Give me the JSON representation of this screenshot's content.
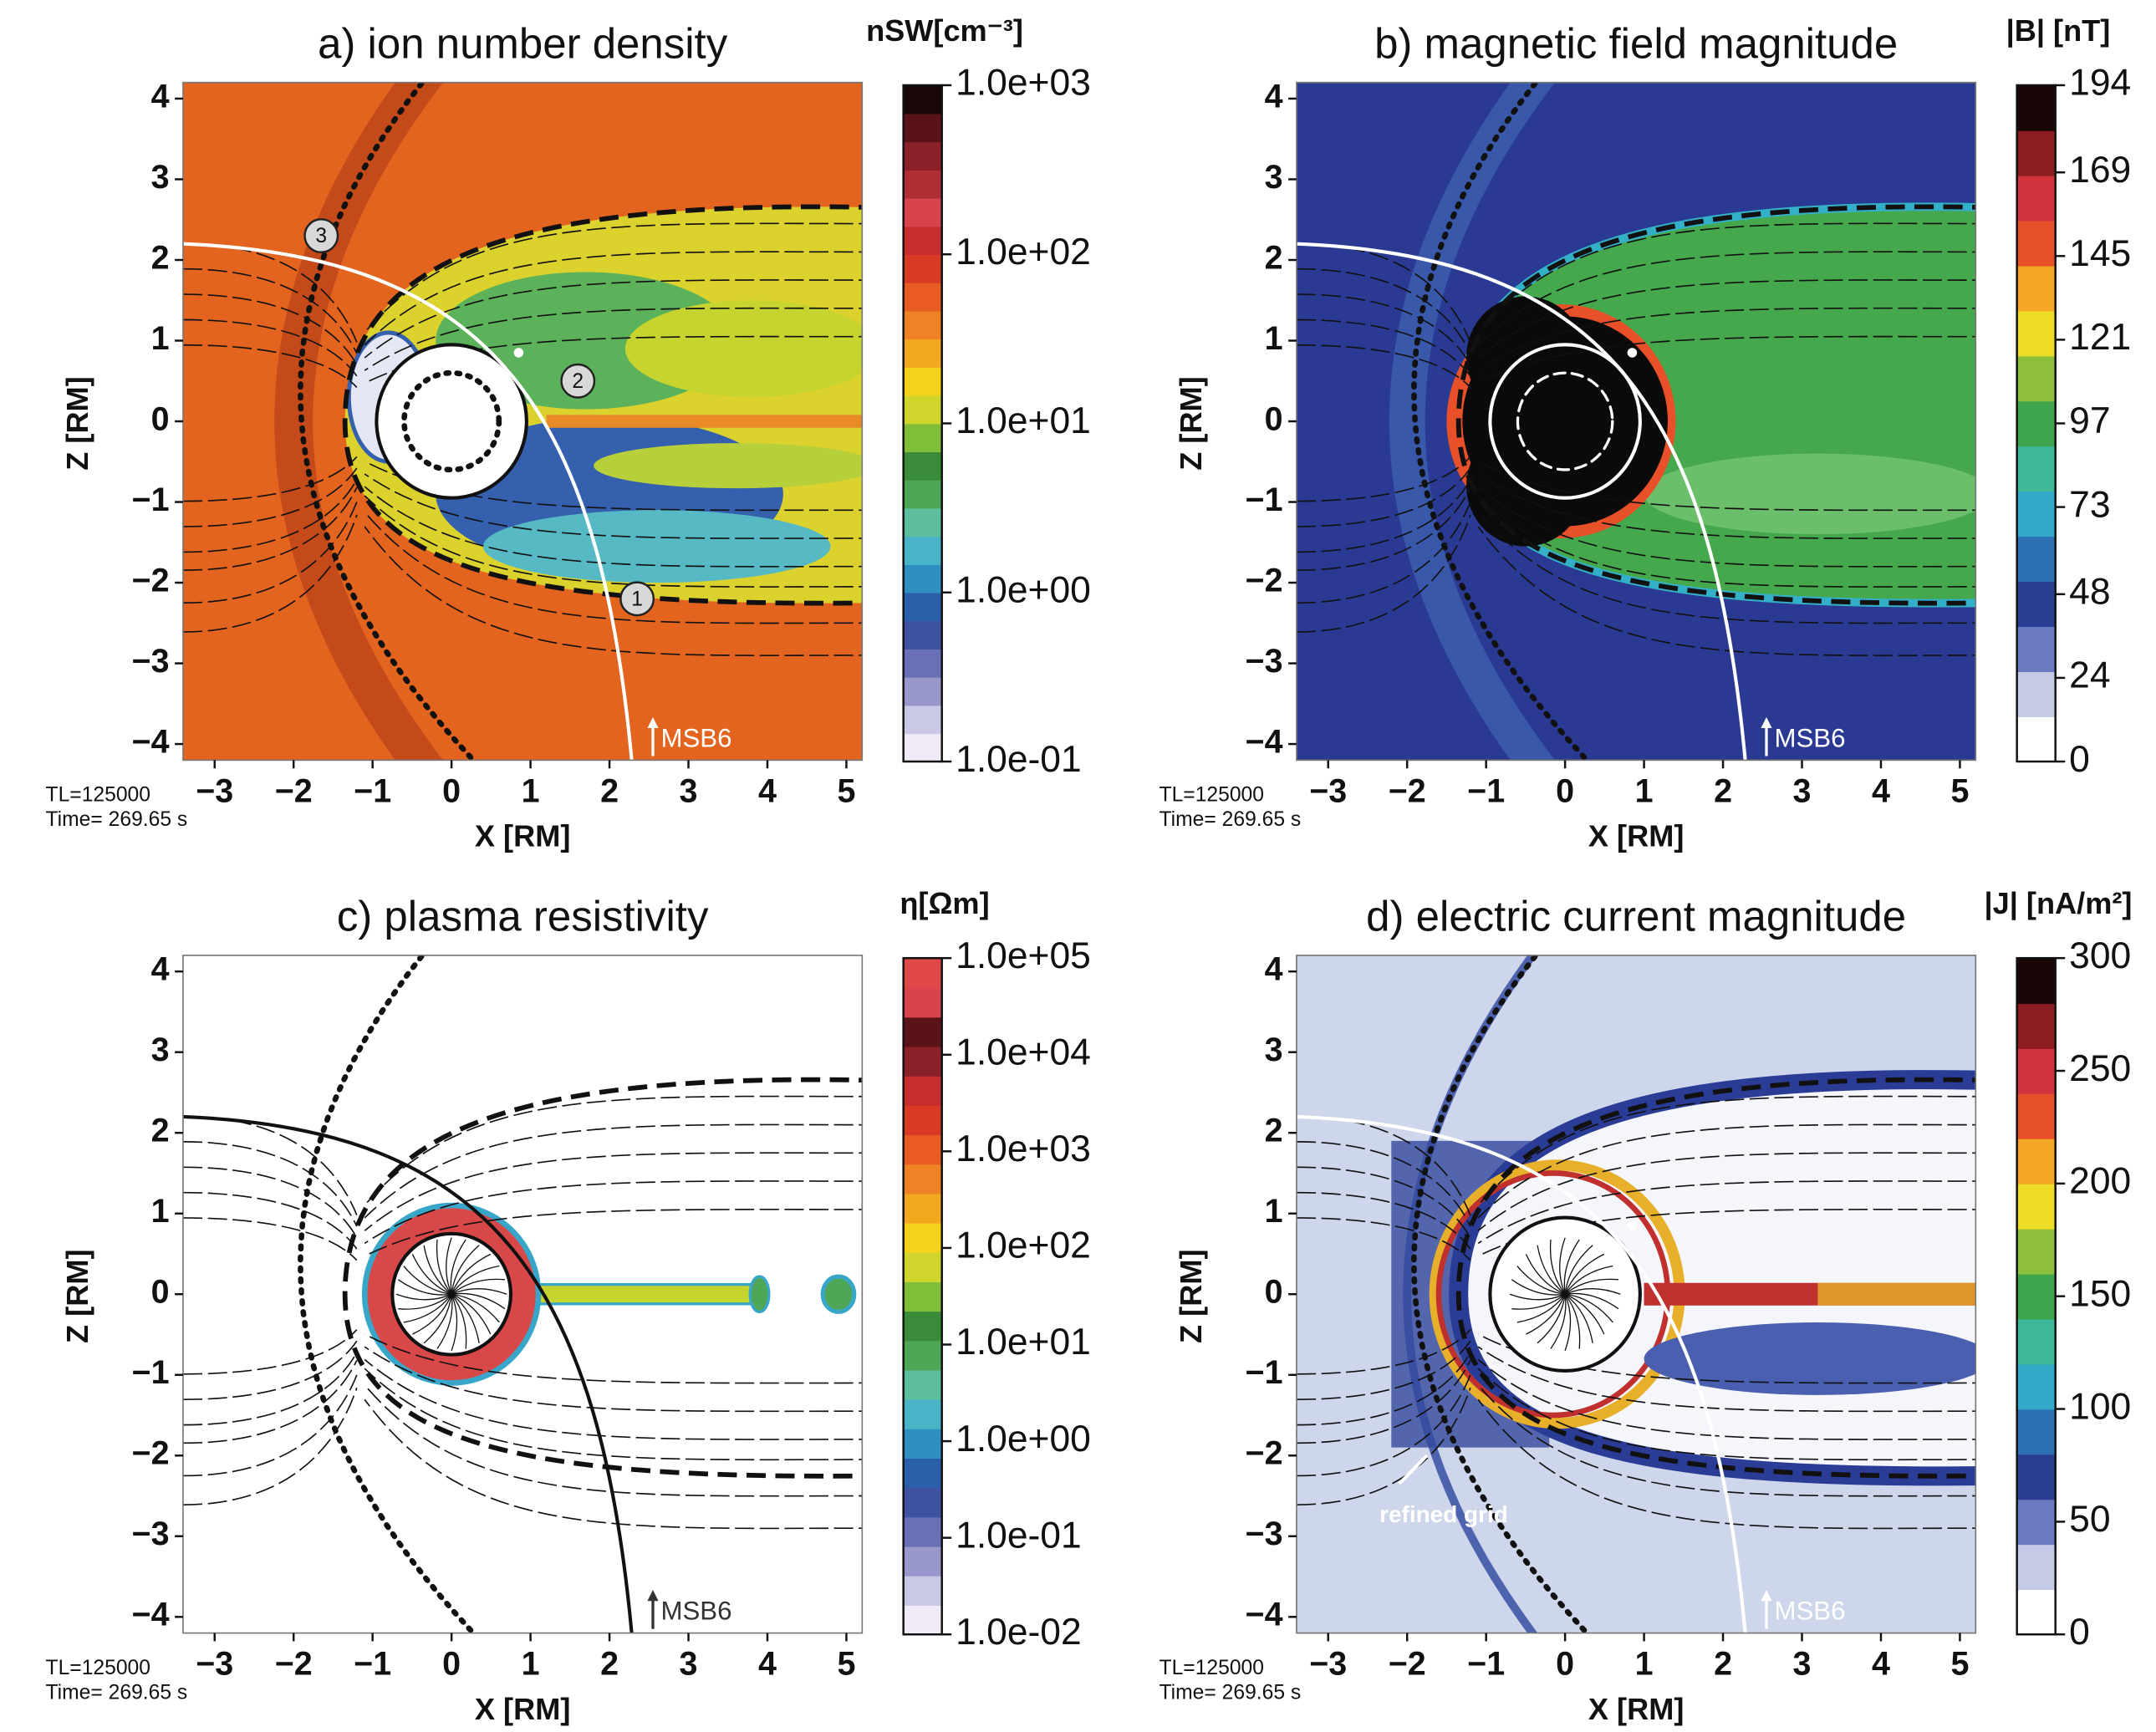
{
  "chart_data": [
    {
      "type": "heatmap",
      "title": "a) ion number density",
      "colorbar_label": "nSW[cm⁻³]",
      "xlabel": "X [RM]",
      "ylabel": "Z [RM]",
      "xlim": [
        -3.4,
        5.2
      ],
      "ylim": [
        -4.2,
        4.2
      ],
      "xticks": [
        {
          "value": -3,
          "label": "−3"
        },
        {
          "value": -2,
          "label": "−2"
        },
        {
          "value": -1,
          "label": "−1"
        },
        0,
        1,
        2,
        3,
        4,
        5
      ],
      "yticks": [
        {
          "value": -4,
          "label": "−4"
        },
        {
          "value": -3,
          "label": "−3"
        },
        {
          "value": -2,
          "label": "−2"
        },
        {
          "value": -1,
          "label": "−1"
        },
        0,
        1,
        2,
        3,
        4
      ],
      "clim": [
        0.1,
        1000
      ],
      "colorbar_log": true,
      "colorbar_ticks": [
        {
          "value": 1000,
          "label": "1.0e+03"
        },
        {
          "value": 100,
          "label": "1.0e+02"
        },
        {
          "value": 10,
          "label": "1.0e+01"
        },
        {
          "value": 1,
          "label": "1.0e+00"
        },
        {
          "value": 0.1,
          "label": "1.0e-01"
        }
      ],
      "colormap": [
        "#efeaf6",
        "#c9c8e6",
        "#9898cc",
        "#6a70b6",
        "#3f53a3",
        "#2c5fa9",
        "#2f8fc0",
        "#49b3c8",
        "#5ebf9e",
        "#4fa656",
        "#3a8c3a",
        "#7fbf3a",
        "#cfd52a",
        "#f3d21b",
        "#f2a91f",
        "#ee8224",
        "#e85c24",
        "#d83a26",
        "#c72d2e",
        "#d9434b",
        "#b02e36",
        "#8a2028",
        "#5a1417",
        "#1a0808"
      ],
      "run_label": "TL=125000",
      "time_label": "Time= 269.65 s",
      "trajectory_label": "MSB6",
      "markers": [
        "1",
        "2",
        "3"
      ]
    },
    {
      "type": "heatmap",
      "title": "b) magnetic field magnitude",
      "colorbar_label": "|B| [nT]",
      "xlabel": "X [RM]",
      "ylabel": "Z [RM]",
      "xlim": [
        -3.4,
        5.2
      ],
      "ylim": [
        -4.2,
        4.2
      ],
      "xticks": [
        {
          "value": -3,
          "label": "−3"
        },
        {
          "value": -2,
          "label": "−2"
        },
        {
          "value": -1,
          "label": "−1"
        },
        0,
        1,
        2,
        3,
        4,
        5
      ],
      "yticks": [
        {
          "value": -4,
          "label": "−4"
        },
        {
          "value": -3,
          "label": "−3"
        },
        {
          "value": -2,
          "label": "−2"
        },
        {
          "value": -1,
          "label": "−1"
        },
        0,
        1,
        2,
        3,
        4
      ],
      "clim": [
        0,
        194
      ],
      "colorbar_log": false,
      "colorbar_ticks": [
        194,
        169,
        145,
        121,
        97,
        73,
        48,
        24,
        0
      ],
      "colormap": [
        "#ffffff",
        "#c5cbe6",
        "#6a7ac0",
        "#2b3d93",
        "#2b6fb5",
        "#33a9c9",
        "#3db99a",
        "#3ea54d",
        "#8cc03c",
        "#eddc25",
        "#f5a623",
        "#e8502a",
        "#d0333b",
        "#8b1c20",
        "#1a0606"
      ],
      "run_label": "TL=125000",
      "time_label": "Time= 269.65 s",
      "trajectory_label": "MSB6"
    },
    {
      "type": "heatmap",
      "title": "c) plasma resistivity",
      "colorbar_label": "η[Ωm]",
      "xlabel": "X [RM]",
      "ylabel": "Z [RM]",
      "xlim": [
        -3.4,
        5.2
      ],
      "ylim": [
        -4.2,
        4.2
      ],
      "xticks": [
        {
          "value": -3,
          "label": "−3"
        },
        {
          "value": -2,
          "label": "−2"
        },
        {
          "value": -1,
          "label": "−1"
        },
        0,
        1,
        2,
        3,
        4,
        5
      ],
      "yticks": [
        {
          "value": -4,
          "label": "−4"
        },
        {
          "value": -3,
          "label": "−3"
        },
        {
          "value": -2,
          "label": "−2"
        },
        {
          "value": -1,
          "label": "−1"
        },
        0,
        1,
        2,
        3,
        4
      ],
      "clim": [
        0.01,
        100000
      ],
      "colorbar_log": true,
      "colorbar_ticks": [
        {
          "value": 100000,
          "label": "1.0e+05"
        },
        {
          "value": 10000,
          "label": "1.0e+04"
        },
        {
          "value": 1000,
          "label": "1.0e+03"
        },
        {
          "value": 100,
          "label": "1.0e+02"
        },
        {
          "value": 10,
          "label": "1.0e+01"
        },
        {
          "value": 1,
          "label": "1.0e+00"
        },
        {
          "value": 0.1,
          "label": "1.0e-01"
        },
        {
          "value": 0.01,
          "label": "1.0e-02"
        }
      ],
      "colormap": [
        "#efeaf6",
        "#c9c8e6",
        "#9898cc",
        "#6a70b6",
        "#3f53a3",
        "#2c5fa9",
        "#2f8fc0",
        "#49b3c8",
        "#5ebf9e",
        "#4fa656",
        "#3a8c3a",
        "#7fbf3a",
        "#cfd52a",
        "#f3d21b",
        "#f2a91f",
        "#ee8224",
        "#e85c24",
        "#d83a26",
        "#c72d2e",
        "#8a2028",
        "#5a1417",
        "#d9434b",
        "#e04848"
      ],
      "run_label": "TL=125000",
      "time_label": "Time= 269.65 s",
      "trajectory_label": "MSB6"
    },
    {
      "type": "heatmap",
      "title": "d) electric current magnitude",
      "colorbar_label": "|J| [nA/m²]",
      "xlabel": "X [RM]",
      "ylabel": "Z [RM]",
      "xlim": [
        -3.4,
        5.2
      ],
      "ylim": [
        -4.2,
        4.2
      ],
      "xticks": [
        {
          "value": -3,
          "label": "−3"
        },
        {
          "value": -2,
          "label": "−2"
        },
        {
          "value": -1,
          "label": "−1"
        },
        0,
        1,
        2,
        3,
        4,
        5
      ],
      "yticks": [
        {
          "value": -4,
          "label": "−4"
        },
        {
          "value": -3,
          "label": "−3"
        },
        {
          "value": -2,
          "label": "−2"
        },
        {
          "value": -1,
          "label": "−1"
        },
        0,
        1,
        2,
        3,
        4
      ],
      "clim": [
        0,
        300
      ],
      "colorbar_log": false,
      "colorbar_ticks": [
        300,
        250,
        200,
        150,
        100,
        50,
        0
      ],
      "colormap": [
        "#ffffff",
        "#c5cbe6",
        "#6a7ac0",
        "#2b3d93",
        "#2b6fb5",
        "#33a9c9",
        "#3db99a",
        "#3ea54d",
        "#8cc03c",
        "#eddc25",
        "#f5a623",
        "#e8502a",
        "#d0333b",
        "#8b1c20",
        "#1a0606"
      ],
      "run_label": "TL=125000",
      "time_label": "Time= 269.65 s",
      "trajectory_label": "MSB6",
      "note": "refined grid"
    }
  ]
}
